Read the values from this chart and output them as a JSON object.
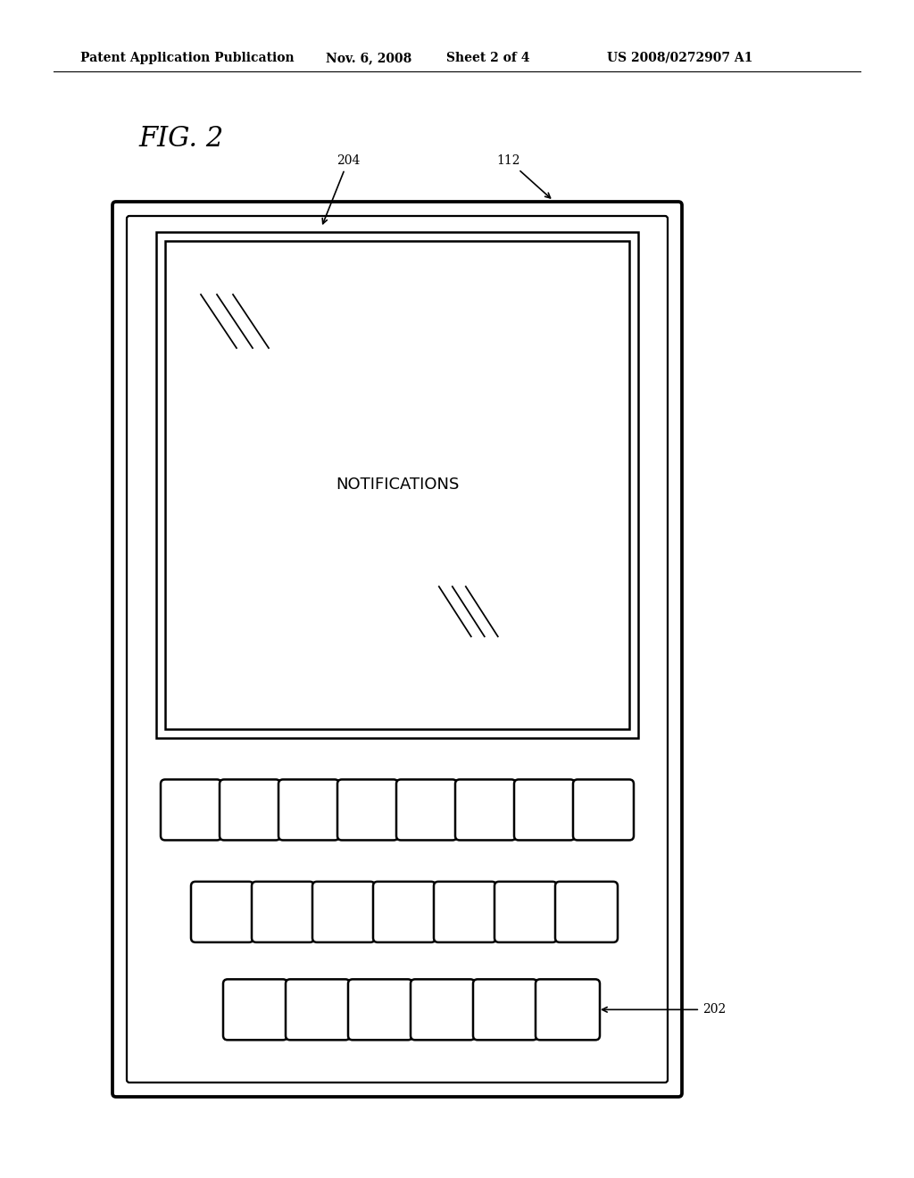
{
  "bg_color": "#ffffff",
  "header_text": "Patent Application Publication",
  "header_date": "Nov. 6, 2008",
  "header_sheet": "Sheet 2 of 4",
  "header_patent": "US 2008/0272907 A1",
  "fig_label": "FIG. 2",
  "notifications_text": "NOTIFICATIONS",
  "label_204": "204",
  "label_112": "112",
  "label_202": "202",
  "line_width": 1.8,
  "font_size_header": 10,
  "font_size_fig": 22,
  "font_size_notif": 13,
  "font_size_label": 10
}
